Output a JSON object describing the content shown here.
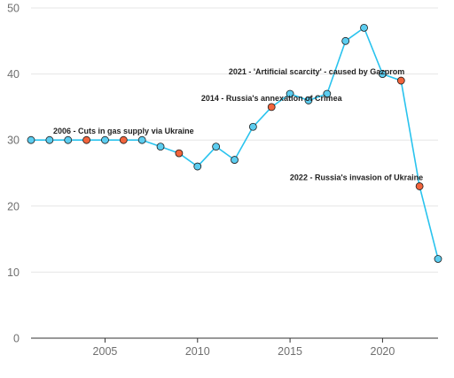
{
  "chart_data": {
    "type": "line",
    "title": "",
    "xlabel": "",
    "ylabel": "",
    "xlim": [
      2001,
      2023
    ],
    "ylim": [
      0,
      50
    ],
    "x_ticks": [
      2005,
      2010,
      2015,
      2020
    ],
    "y_ticks": [
      0,
      10,
      20,
      30,
      40,
      50
    ],
    "grid": "horizontal",
    "legend": "none",
    "colors": {
      "line": "#29c3ee",
      "point": "#5ccdf0",
      "highlight_point": "#f2643c"
    },
    "series": [
      {
        "x": [
          2001,
          2002,
          2003,
          2004,
          2005,
          2006,
          2007,
          2008,
          2009,
          2010,
          2011,
          2012,
          2013,
          2014,
          2015,
          2016,
          2017,
          2018,
          2019,
          2020,
          2021,
          2022,
          2023
        ],
        "values": [
          30,
          30,
          30,
          30,
          30,
          30,
          30,
          29,
          28,
          26,
          29,
          27,
          32,
          35,
          37,
          36,
          37,
          45,
          47,
          40,
          39,
          23,
          12
        ],
        "highlighted": [
          false,
          false,
          false,
          true,
          false,
          true,
          false,
          false,
          true,
          false,
          false,
          false,
          false,
          true,
          false,
          false,
          false,
          false,
          false,
          false,
          true,
          true,
          false
        ]
      }
    ],
    "annotations": [
      {
        "text": "2006 - Cuts in gas supply via Ukraine",
        "x": 2006,
        "y": 30,
        "anchor": "middle"
      },
      {
        "text": "2014 - Russia's annexation of Crimea",
        "x": 2014,
        "y": 35,
        "anchor": "middle"
      },
      {
        "text": "2021 - 'Artificial scarcity' - caused by Gazprom",
        "x": 2021,
        "y": 39,
        "anchor": "end"
      },
      {
        "text": "2022 - Russia's invasion of Ukraine",
        "x": 2022,
        "y": 23,
        "anchor": "end"
      }
    ]
  }
}
